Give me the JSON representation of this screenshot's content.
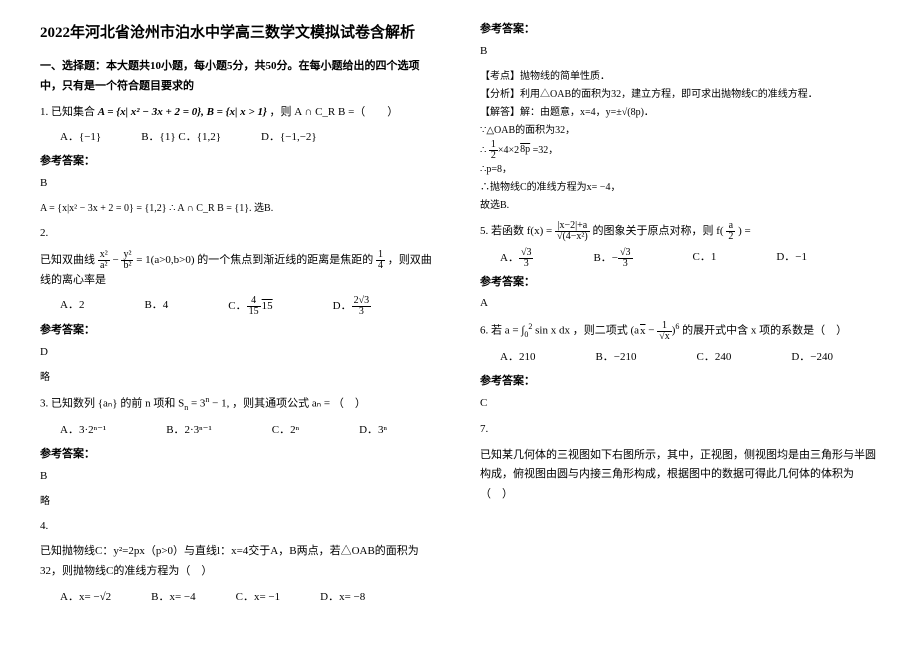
{
  "title": "2022年河北省沧州市泊水中学高三数学文模拟试卷含解析",
  "section1_head": "一、选择题：本大题共10小题，每小题5分，共50分。在每小题给出的四个选项中，只有是一个符合题目要求的",
  "q1": {
    "stem_prefix": "1. 已知集合 ",
    "stem_formula": "A = {x| x² − 3x + 2 = 0}, B = {x| x > 1}",
    "stem_suffix": "，则 A ∩ C_R B =（　　）",
    "opts": {
      "a": "A．{−1}",
      "b": "B．{1} C．{1,2}",
      "d": "D．{−1,−2}"
    },
    "ans_label": "参考答案：",
    "ans": "B",
    "expl": "A = {x|x² − 3x + 2 = 0} = {1,2} ∴ A ∩ C_R B = {1}. 选B."
  },
  "q2": {
    "id": "2.",
    "stem_prefix": "已知双曲线 ",
    "stem_suffix": " 的一个焦点到渐近线的距离是焦距的 ",
    "stem_tail": " ，则双曲线的离心率是",
    "opts": {
      "a": "A．2",
      "b": "B．4",
      "c": "C．",
      "d": "D．"
    },
    "ans_label": "参考答案：",
    "ans": "D",
    "note": "略"
  },
  "q3": {
    "stem_prefix": "3. 已知数列 {aₙ} 的前 n 项和 ",
    "stem_suffix": "，则其通项公式 aₙ = （　）",
    "opts": {
      "a": "A．3·2ⁿ⁻¹",
      "b": "B．2·3ⁿ⁻¹",
      "c": "C．2ⁿ",
      "d": "D．3ⁿ"
    },
    "ans_label": "参考答案：",
    "ans": "B",
    "note": "略"
  },
  "q4": {
    "id": "4.",
    "stem": "已知抛物线C：y²=2px（p>0）与直线l：x=4交于A，B两点，若△OAB的面积为32，则抛物线C的准线方程为（　）",
    "opts": {
      "a": "A．x= −√2",
      "b": "B．x= −4",
      "c": "C．x= −1",
      "d": "D．x= −8"
    },
    "ans_label": "参考答案：",
    "ans": "B",
    "expl_head": "【考点】抛物线的简单性质．",
    "expl_ana": "【分析】利用△OAB的面积为32，建立方程，即可求出抛物线C的准线方程．",
    "expl_sol_label": "【解答】解：由题意，x=4，y=±√(8p)．",
    "expl_l1": "∵△OAB的面积为32，",
    "expl_l3": "∴p=8，",
    "expl_l4": "∴抛物线C的准线方程为x= −4，",
    "expl_l5": "故选B."
  },
  "q5": {
    "stem_prefix": "5. 若函数 ",
    "stem_suffix": " 的图象关于原点对称，则 f( ",
    "stem_tail": " ) =",
    "opts": {
      "a": "A．",
      "b": "B．−",
      "c": "C．1",
      "d": "D．−1"
    },
    "ans_label": "参考答案：",
    "ans": "A"
  },
  "q6": {
    "stem_prefix": "6. 若 ",
    "stem_mid": "，则二项式 ",
    "stem_suffix": " 的展开式中含 x 项的系数是（　）",
    "opts": {
      "a": "A．210",
      "b": "B．−210",
      "c": "C．240",
      "d": "D．−240"
    },
    "ans_label": "参考答案：",
    "ans": "C"
  },
  "q7": {
    "id": "7.",
    "stem": "已知某几何体的三视图如下右图所示，其中，正视图，侧视图均是由三角形与半圆构成，俯视图由圆与内接三角形构成，根据图中的数据可得此几何体的体积为（　）"
  },
  "colors": {
    "text": "#000000",
    "bg": "#ffffff"
  }
}
